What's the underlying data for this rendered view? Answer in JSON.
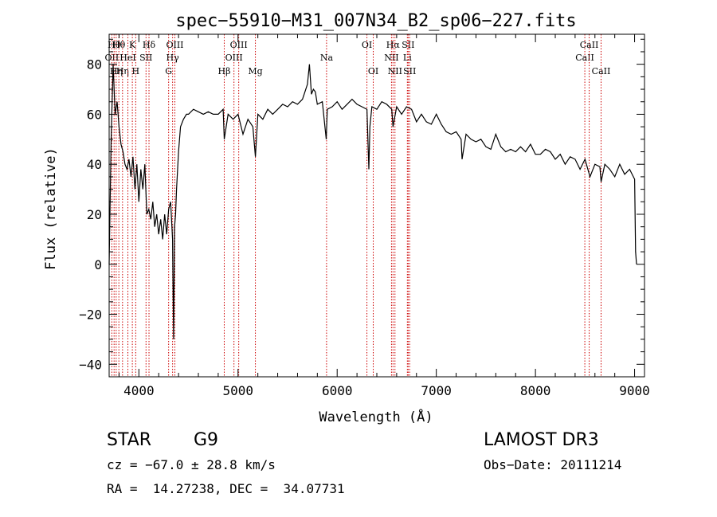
{
  "chart_data": {
    "type": "line",
    "title": "spec−55910−M31_007N34_B2_sp06−227.fits",
    "xlabel": "Wavelength (Å)",
    "ylabel": "Flux (relative)",
    "xlim": [
      3700,
      9100
    ],
    "ylim": [
      -45,
      92
    ],
    "x_ticks": [
      4000,
      5000,
      6000,
      7000,
      8000,
      9000
    ],
    "x_tick_labels": [
      "4000",
      "5000",
      "6000",
      "7000",
      "8000",
      "9000"
    ],
    "y_ticks": [
      -40,
      -20,
      0,
      20,
      40,
      60,
      80
    ],
    "y_tick_labels": [
      "−40",
      "−20",
      "0",
      "20",
      "40",
      "60",
      "80"
    ],
    "grid": false,
    "line_color": "#000000",
    "marker_color": "#cc0000",
    "series": [
      {
        "x": [
          3700,
          3720,
          3740,
          3760,
          3780,
          3800,
          3820,
          3840,
          3860,
          3880,
          3900,
          3920,
          3940,
          3960,
          3980,
          4000,
          4020,
          4040,
          4060,
          4080,
          4100,
          4120,
          4140,
          4160,
          4180,
          4200,
          4220,
          4240,
          4260,
          4280,
          4300,
          4320,
          4340,
          4350,
          4360,
          4370,
          4380,
          4400,
          4420,
          4450,
          4480,
          4500,
          4550,
          4600,
          4650,
          4700,
          4750,
          4800,
          4850,
          4861,
          4900,
          4950,
          5000,
          5050,
          5100,
          5150,
          5175,
          5200,
          5250,
          5300,
          5350,
          5400,
          5450,
          5500,
          5550,
          5600,
          5650,
          5700,
          5720,
          5740,
          5760,
          5780,
          5800,
          5850,
          5890,
          5900,
          5950,
          6000,
          6050,
          6100,
          6150,
          6200,
          6250,
          6300,
          6320,
          6330,
          6350,
          6400,
          6450,
          6500,
          6550,
          6563,
          6600,
          6650,
          6700,
          6750,
          6800,
          6850,
          6900,
          6950,
          7000,
          7050,
          7100,
          7150,
          7200,
          7250,
          7260,
          7300,
          7350,
          7400,
          7450,
          7500,
          7550,
          7600,
          7650,
          7700,
          7750,
          7800,
          7850,
          7900,
          7950,
          8000,
          8050,
          8100,
          8150,
          8200,
          8250,
          8300,
          8350,
          8400,
          8450,
          8500,
          8550,
          8600,
          8650,
          8662,
          8700,
          8750,
          8800,
          8850,
          8900,
          8950,
          9000,
          9010,
          9020
        ],
        "y": [
          0,
          50,
          80,
          60,
          65,
          55,
          48,
          45,
          40,
          38,
          42,
          35,
          43,
          30,
          40,
          25,
          38,
          30,
          40,
          20,
          22,
          18,
          25,
          15,
          20,
          12,
          18,
          10,
          20,
          12,
          22,
          25,
          10,
          -30,
          15,
          20,
          30,
          45,
          55,
          58,
          60,
          60,
          62,
          61,
          60,
          61,
          60,
          60,
          62,
          50,
          60,
          58,
          60,
          52,
          58,
          55,
          43,
          60,
          58,
          62,
          60,
          62,
          64,
          63,
          65,
          64,
          66,
          72,
          80,
          68,
          70,
          69,
          64,
          65,
          50,
          62,
          63,
          65,
          62,
          64,
          66,
          64,
          63,
          62,
          38,
          55,
          63,
          62,
          65,
          64,
          62,
          55,
          63,
          60,
          63,
          62,
          57,
          60,
          57,
          56,
          60,
          56,
          53,
          52,
          53,
          50,
          42,
          52,
          50,
          49,
          50,
          47,
          46,
          52,
          47,
          45,
          46,
          45,
          47,
          45,
          48,
          44,
          44,
          46,
          45,
          42,
          44,
          40,
          43,
          42,
          38,
          42,
          35,
          40,
          39,
          33,
          40,
          38,
          35,
          40,
          36,
          38,
          34,
          5,
          0
        ]
      }
    ],
    "line_markers": [
      {
        "wavelength": 3727,
        "label": "OII",
        "row": 1
      },
      {
        "wavelength": 3750,
        "label": "Hθ",
        "row": 0
      },
      {
        "wavelength": 3771,
        "label": "Hη",
        "row": 2
      },
      {
        "wavelength": 3798,
        "label": "Hθ",
        "row": 0
      },
      {
        "wavelength": 3835,
        "label": "Hη",
        "row": 2
      },
      {
        "wavelength": 3889,
        "label": "HeI",
        "row": 1
      },
      {
        "wavelength": 3934,
        "label": "K",
        "row": 0
      },
      {
        "wavelength": 3968,
        "label": "H",
        "row": 2
      },
      {
        "wavelength": 4072,
        "label": "SII",
        "row": 1
      },
      {
        "wavelength": 4102,
        "label": "Hδ",
        "row": 0
      },
      {
        "wavelength": 4300,
        "label": "G",
        "row": 2
      },
      {
        "wavelength": 4340,
        "label": "Hγ",
        "row": 1
      },
      {
        "wavelength": 4363,
        "label": "OIII",
        "row": 0
      },
      {
        "wavelength": 4861,
        "label": "Hβ",
        "row": 2
      },
      {
        "wavelength": 4959,
        "label": "OIII",
        "row": 1
      },
      {
        "wavelength": 5007,
        "label": "OIII",
        "row": 0
      },
      {
        "wavelength": 5175,
        "label": "Mg",
        "row": 2
      },
      {
        "wavelength": 5893,
        "label": "Na",
        "row": 1
      },
      {
        "wavelength": 6300,
        "label": "OI",
        "row": 0
      },
      {
        "wavelength": 6364,
        "label": "OI",
        "row": 2
      },
      {
        "wavelength": 6548,
        "label": "NII",
        "row": 1
      },
      {
        "wavelength": 6563,
        "label": "Hα",
        "row": 0
      },
      {
        "wavelength": 6583,
        "label": "NII",
        "row": 2
      },
      {
        "wavelength": 6708,
        "label": "Li",
        "row": 1
      },
      {
        "wavelength": 6716,
        "label": "SII",
        "row": 0
      },
      {
        "wavelength": 6731,
        "label": "SII",
        "row": 2
      },
      {
        "wavelength": 8498,
        "label": "CaII",
        "row": 1
      },
      {
        "wavelength": 8542,
        "label": "CaII",
        "row": 0
      },
      {
        "wavelength": 8662,
        "label": "CaII",
        "row": 2
      }
    ]
  },
  "info": {
    "object_class": "STAR",
    "subclass": "G9",
    "survey": "LAMOST DR3",
    "cz": "cz = −67.0 ± 28.8 km/s",
    "obs_date": "Obs−Date: 20111214",
    "coords": "RA =  14.27238, DEC =  34.07731"
  }
}
